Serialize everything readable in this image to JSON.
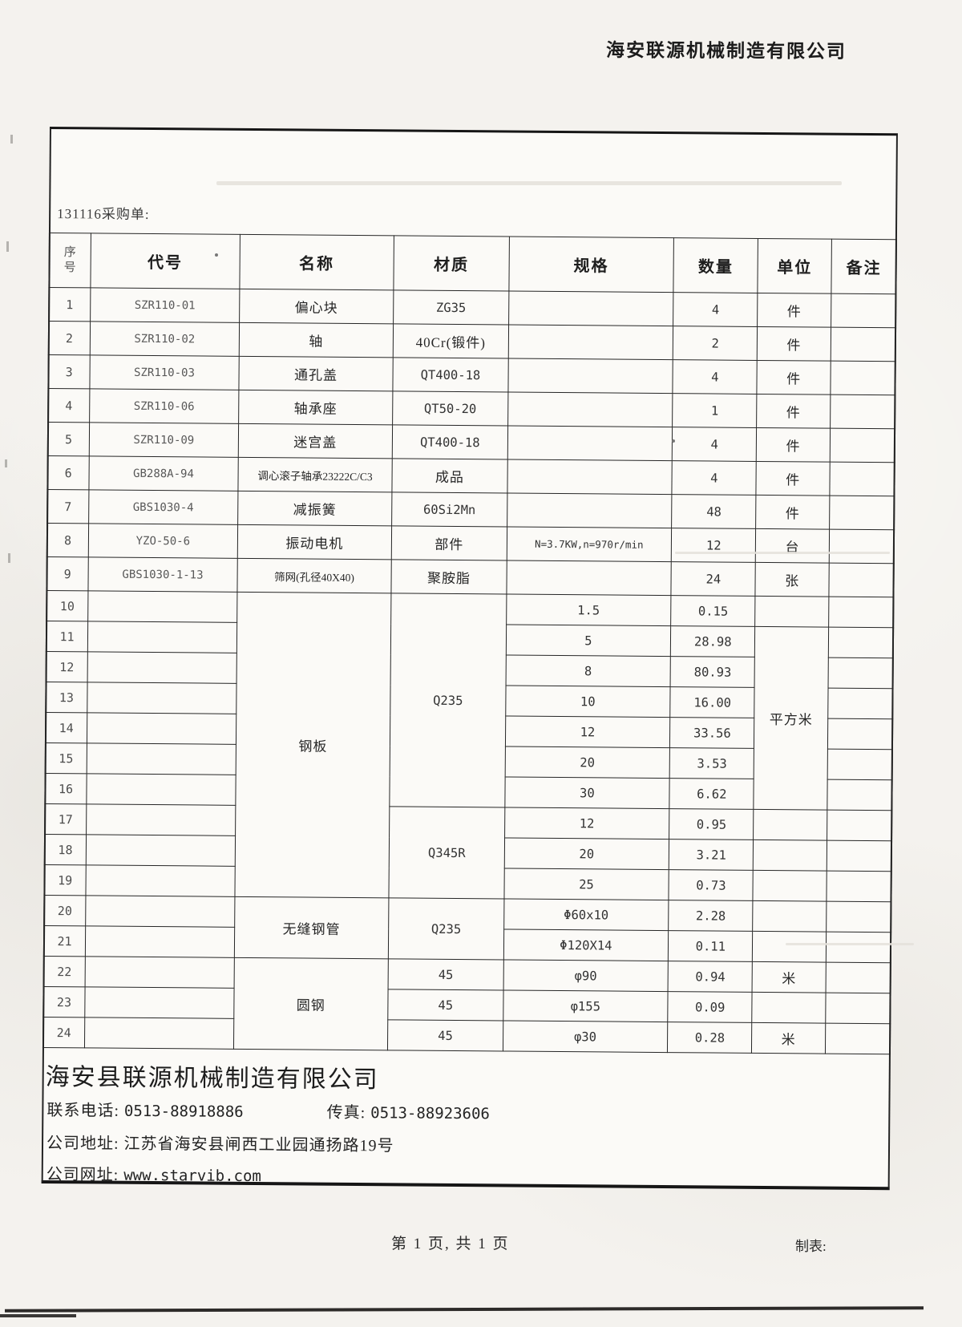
{
  "page_header": {
    "company": "海安联源机械制造有限公司"
  },
  "order": {
    "label": "131116采购单:"
  },
  "table": {
    "columns": [
      "序号",
      "代号",
      "名称",
      "材质",
      "规格",
      "数量",
      "单位",
      "备注"
    ],
    "rows": [
      {
        "no": "1",
        "code": "SZR110-01",
        "name": "偏心块",
        "material": "ZG35",
        "spec": "",
        "qty": "4",
        "unit": "件",
        "remark": ""
      },
      {
        "no": "2",
        "code": "SZR110-02",
        "name": "轴",
        "material": "40Cr(锻件)",
        "spec": "",
        "qty": "2",
        "unit": "件",
        "remark": ""
      },
      {
        "no": "3",
        "code": "SZR110-03",
        "name": "通孔盖",
        "material": "QT400-18",
        "spec": "",
        "qty": "4",
        "unit": "件",
        "remark": ""
      },
      {
        "no": "4",
        "code": "SZR110-06",
        "name": "轴承座",
        "material": "QT50-20",
        "spec": "",
        "qty": "1",
        "unit": "件",
        "remark": ""
      },
      {
        "no": "5",
        "code": "SZR110-09",
        "name": "迷宫盖",
        "material": "QT400-18",
        "spec": "",
        "qty": "4",
        "unit": "件",
        "remark": ""
      },
      {
        "no": "6",
        "code": "GB288A-94",
        "name": "调心滚子轴承23222C/C3",
        "material": "成品",
        "spec": "",
        "qty": "4",
        "unit": "件",
        "remark": ""
      },
      {
        "no": "7",
        "code": "GBS1030-4",
        "name": "减振簧",
        "material": "60Si2Mn",
        "spec": "",
        "qty": "48",
        "unit": "件",
        "remark": ""
      },
      {
        "no": "8",
        "code": "YZO-50-6",
        "name": "振动电机",
        "material": "部件",
        "spec": "N=3.7KW,n=970r/min",
        "qty": "12",
        "unit": "台",
        "remark": ""
      },
      {
        "no": "9",
        "code": "GBS1030-1-13",
        "name": "筛网(孔径40X40)",
        "material": "聚胺脂",
        "spec": "",
        "qty": "24",
        "unit": "张",
        "remark": ""
      },
      {
        "no": "10",
        "code": "",
        "name": "钢板",
        "material": "Q235",
        "spec": "1.5",
        "qty": "0.15",
        "unit": "",
        "remark": ""
      },
      {
        "no": "11",
        "code": "",
        "spec": "5",
        "qty": "28.98",
        "unit": "平方米",
        "remark": ""
      },
      {
        "no": "12",
        "code": "",
        "spec": "8",
        "qty": "80.93",
        "remark": ""
      },
      {
        "no": "13",
        "code": "",
        "spec": "10",
        "qty": "16.00",
        "remark": ""
      },
      {
        "no": "14",
        "code": "",
        "spec": "12",
        "qty": "33.56",
        "remark": ""
      },
      {
        "no": "15",
        "code": "",
        "spec": "20",
        "qty": "3.53",
        "remark": ""
      },
      {
        "no": "16",
        "code": "",
        "spec": "30",
        "qty": "6.62",
        "remark": ""
      },
      {
        "no": "17",
        "code": "",
        "material": "Q345R",
        "spec": "12",
        "qty": "0.95",
        "unit": "",
        "remark": ""
      },
      {
        "no": "18",
        "code": "",
        "spec": "20",
        "qty": "3.21",
        "unit": "",
        "remark": ""
      },
      {
        "no": "19",
        "code": "",
        "spec": "25",
        "qty": "0.73",
        "unit": "",
        "remark": ""
      },
      {
        "no": "20",
        "code": "",
        "name": "无缝钢管",
        "material": "Q235",
        "spec": "Φ60x10",
        "qty": "2.28",
        "unit": "",
        "remark": ""
      },
      {
        "no": "21",
        "code": "",
        "spec": "Φ120X14",
        "qty": "0.11",
        "unit": "",
        "remark": ""
      },
      {
        "no": "22",
        "code": "",
        "name": "圆钢",
        "material": "45",
        "spec": "φ90",
        "qty": "0.94",
        "unit": "米",
        "remark": ""
      },
      {
        "no": "23",
        "code": "",
        "material": "45",
        "spec": "φ155",
        "qty": "0.09",
        "unit": "",
        "remark": ""
      },
      {
        "no": "24",
        "code": "",
        "material": "45",
        "spec": "φ30",
        "qty": "0.28",
        "unit": "米",
        "remark": ""
      }
    ]
  },
  "footer": {
    "company": "海安县联源机械制造有限公司",
    "tel_label": "联系电话:",
    "tel": "0513-88918886",
    "fax_label": "传真:",
    "fax": "0513-88923606",
    "addr_label": "公司地址:",
    "addr": "江苏省海安县闸西工业园通扬路19号",
    "web_label": "公司网址:",
    "web": "www.starvib.com"
  },
  "page_footer": {
    "page_info": "第 1 页, 共 1 页",
    "maker_label": "制表:"
  }
}
